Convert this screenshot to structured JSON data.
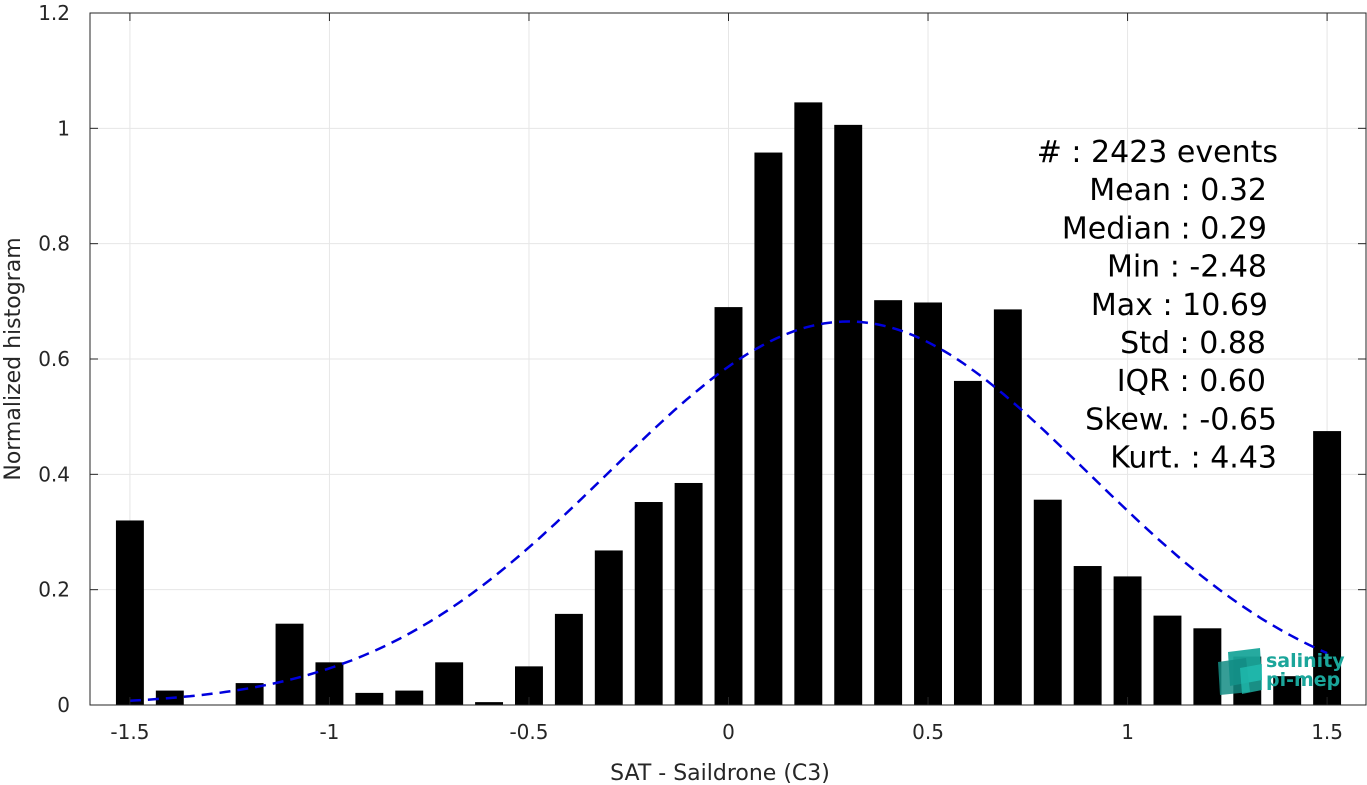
{
  "chart_data": {
    "type": "bar",
    "xlabel": "SAT - Saildrone (C3)",
    "ylabel": "Normalized histogram",
    "xlim": [
      -1.6,
      1.6
    ],
    "ylim": [
      0,
      1.2
    ],
    "grid": true,
    "x_ticks": [
      -1.5,
      -1,
      -0.5,
      0,
      0.5,
      1,
      1.5
    ],
    "x_tick_labels": [
      "-1.5",
      "-1",
      "-0.5",
      "0",
      "0.5",
      "1",
      "1.5"
    ],
    "y_ticks": [
      0,
      0.2,
      0.4,
      0.6,
      0.8,
      1,
      1.2
    ],
    "y_tick_labels": [
      "0",
      "0.2",
      "0.4",
      "0.6",
      "0.8",
      "1",
      "1.2"
    ],
    "bar_color": "#000000",
    "bars": [
      {
        "x": -1.5,
        "y": 0.32
      },
      {
        "x": -1.4,
        "y": 0.025
      },
      {
        "x": -1.3,
        "y": 0.0
      },
      {
        "x": -1.2,
        "y": 0.038
      },
      {
        "x": -1.1,
        "y": 0.141
      },
      {
        "x": -1.0,
        "y": 0.074
      },
      {
        "x": -0.9,
        "y": 0.021
      },
      {
        "x": -0.8,
        "y": 0.025
      },
      {
        "x": -0.7,
        "y": 0.074
      },
      {
        "x": -0.6,
        "y": 0.005
      },
      {
        "x": -0.5,
        "y": 0.067
      },
      {
        "x": -0.4,
        "y": 0.158
      },
      {
        "x": -0.3,
        "y": 0.268
      },
      {
        "x": -0.2,
        "y": 0.352
      },
      {
        "x": -0.1,
        "y": 0.385
      },
      {
        "x": 0.0,
        "y": 0.69
      },
      {
        "x": 0.1,
        "y": 0.958
      },
      {
        "x": 0.2,
        "y": 1.045
      },
      {
        "x": 0.3,
        "y": 1.006
      },
      {
        "x": 0.4,
        "y": 0.702
      },
      {
        "x": 0.5,
        "y": 0.698
      },
      {
        "x": 0.6,
        "y": 0.562
      },
      {
        "x": 0.7,
        "y": 0.686
      },
      {
        "x": 0.8,
        "y": 0.356
      },
      {
        "x": 0.9,
        "y": 0.241
      },
      {
        "x": 1.0,
        "y": 0.223
      },
      {
        "x": 1.1,
        "y": 0.155
      },
      {
        "x": 1.2,
        "y": 0.133
      },
      {
        "x": 1.3,
        "y": 0.084
      },
      {
        "x": 1.4,
        "y": 0.05
      },
      {
        "x": 1.5,
        "y": 0.475
      }
    ],
    "fit_curve": {
      "style": "dashed",
      "color": "#0000dd",
      "mean": 0.3,
      "std": 0.6,
      "peak": 0.665,
      "x_range": [
        -1.5,
        1.5
      ]
    },
    "stats": [
      {
        "label": "#  : 2423 events",
        "align": "#"
      },
      {
        "label": "Mean : 0.32"
      },
      {
        "label": "Median : 0.29"
      },
      {
        "label": "Min : -2.48"
      },
      {
        "label": "Max : 10.69"
      },
      {
        "label": "Std : 0.88"
      },
      {
        "label": "IQR : 0.60"
      },
      {
        "label": "Skew. : -0.65"
      },
      {
        "label": "Kurt. : 4.43"
      }
    ]
  },
  "logo": {
    "line1": "salinity",
    "line2": "pi-mep",
    "color": "#1aa59a"
  }
}
